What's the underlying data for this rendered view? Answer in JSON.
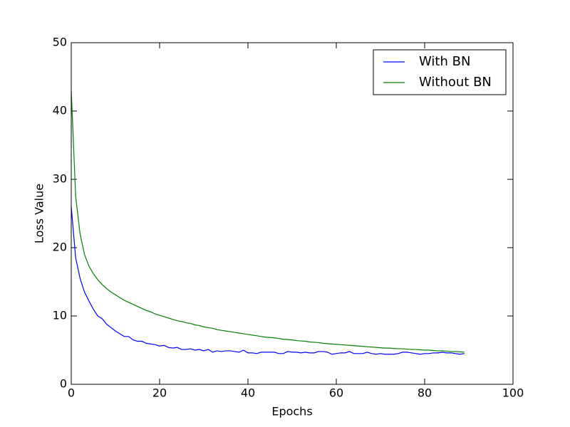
{
  "chart_data": {
    "type": "line",
    "xlabel": "Epochs",
    "ylabel": "Loss Value",
    "x": [
      0,
      1,
      2,
      3,
      4,
      5,
      6,
      7,
      8,
      9,
      10,
      11,
      12,
      13,
      14,
      15,
      16,
      17,
      18,
      19,
      20,
      21,
      22,
      23,
      24,
      25,
      26,
      27,
      28,
      29,
      30,
      31,
      32,
      33,
      34,
      35,
      36,
      37,
      38,
      39,
      40,
      41,
      42,
      43,
      44,
      45,
      46,
      47,
      48,
      49,
      50,
      51,
      52,
      53,
      54,
      55,
      56,
      57,
      58,
      59,
      60,
      61,
      62,
      63,
      64,
      65,
      66,
      67,
      68,
      69,
      70,
      71,
      72,
      73,
      74,
      75,
      76,
      77,
      78,
      79,
      80,
      81,
      82,
      83,
      84,
      85,
      86,
      87,
      88,
      89
    ],
    "series": [
      {
        "name": "With BN",
        "color": "#0000ff",
        "values": [
          26,
          18.5,
          15.5,
          13.5,
          12.2,
          11,
          10,
          9.6,
          8.8,
          8.3,
          7.8,
          7.4,
          7.0,
          7.0,
          6.5,
          6.3,
          6.3,
          6.0,
          5.9,
          5.8,
          5.6,
          5.7,
          5.4,
          5.3,
          5.4,
          5.1,
          5.1,
          5.2,
          5.0,
          5.1,
          4.9,
          5.1,
          4.7,
          4.9,
          4.8,
          4.9,
          4.9,
          4.8,
          4.7,
          5.0,
          4.6,
          4.6,
          4.5,
          4.7,
          4.7,
          4.7,
          4.7,
          4.5,
          4.5,
          4.8,
          4.7,
          4.7,
          4.6,
          4.7,
          4.6,
          4.6,
          4.8,
          4.8,
          4.7,
          4.4,
          4.5,
          4.6,
          4.6,
          4.8,
          4.5,
          4.5,
          4.5,
          4.7,
          4.5,
          4.4,
          4.5,
          4.4,
          4.4,
          4.4,
          4.5,
          4.7,
          4.7,
          4.6,
          4.5,
          4.4,
          4.5,
          4.5,
          4.6,
          4.6,
          4.7,
          4.6,
          4.6,
          4.5,
          4.4,
          4.5
        ]
      },
      {
        "name": "Without BN",
        "color": "#008000",
        "values": [
          43,
          27.5,
          22,
          19,
          17.3,
          16.2,
          15.3,
          14.6,
          14,
          13.5,
          13.1,
          12.7,
          12.3,
          12,
          11.7,
          11.4,
          11.1,
          10.8,
          10.6,
          10.3,
          10.1,
          9.9,
          9.7,
          9.5,
          9.3,
          9.2,
          9.0,
          8.9,
          8.7,
          8.6,
          8.4,
          8.3,
          8.2,
          8.0,
          7.9,
          7.8,
          7.7,
          7.6,
          7.5,
          7.4,
          7.3,
          7.2,
          7.1,
          7.0,
          6.9,
          6.85,
          6.8,
          6.7,
          6.6,
          6.55,
          6.5,
          6.4,
          6.35,
          6.3,
          6.2,
          6.15,
          6.1,
          6.0,
          5.95,
          5.9,
          5.85,
          5.8,
          5.75,
          5.7,
          5.65,
          5.6,
          5.55,
          5.5,
          5.45,
          5.4,
          5.35,
          5.3,
          5.3,
          5.25,
          5.2,
          5.2,
          5.15,
          5.1,
          5.1,
          5.05,
          5.0,
          5.0,
          4.95,
          4.9,
          4.9,
          4.85,
          4.8,
          4.8,
          4.75,
          4.7
        ]
      }
    ],
    "xlim": [
      0,
      100
    ],
    "xticks": [
      0,
      20,
      40,
      60,
      80,
      100
    ],
    "ylim": [
      0,
      50
    ],
    "yticks": [
      0,
      10,
      20,
      30,
      40,
      50
    ],
    "grid": false,
    "legend": "upper right"
  }
}
